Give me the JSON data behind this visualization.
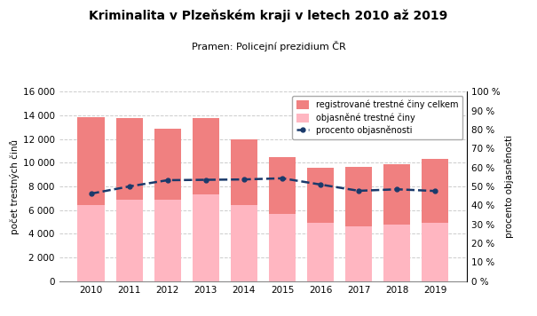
{
  "title": "Kriminalita v Plzeňském kraji v letech 2010 až 2019",
  "subtitle": "Pramen: Policejní prezidium ČR",
  "years": [
    2010,
    2011,
    2012,
    2013,
    2014,
    2015,
    2016,
    2017,
    2018,
    2019
  ],
  "registered": [
    13850,
    13800,
    12850,
    13750,
    12000,
    10500,
    9600,
    9650,
    9900,
    10300
  ],
  "solved": [
    6400,
    6900,
    6850,
    7350,
    6450,
    5700,
    4900,
    4600,
    4800,
    4900
  ],
  "pct_solved": [
    46.2,
    50.0,
    53.3,
    53.5,
    53.7,
    54.3,
    51.0,
    47.7,
    48.5,
    47.6
  ],
  "bar_color_registered": "#F08080",
  "bar_color_solved": "#FFB6C1",
  "line_color": "#1a3a6b",
  "ylabel_left": "počet trestných činů",
  "ylabel_right": "procento objasněnosti",
  "ylim_left": [
    0,
    16000
  ],
  "ylim_right": [
    0,
    100
  ],
  "yticks_left": [
    0,
    2000,
    4000,
    6000,
    8000,
    10000,
    12000,
    14000,
    16000
  ],
  "yticks_right": [
    0,
    10,
    20,
    30,
    40,
    50,
    60,
    70,
    80,
    90,
    100
  ],
  "legend_labels": [
    "registrované trestné činy celkem",
    "objasněné trestné činy",
    "procento objasněnosti"
  ],
  "background_color": "#ffffff",
  "grid_color": "#cccccc",
  "title_fontsize": 10,
  "subtitle_fontsize": 8,
  "axis_label_fontsize": 7.5,
  "tick_fontsize": 7.5
}
